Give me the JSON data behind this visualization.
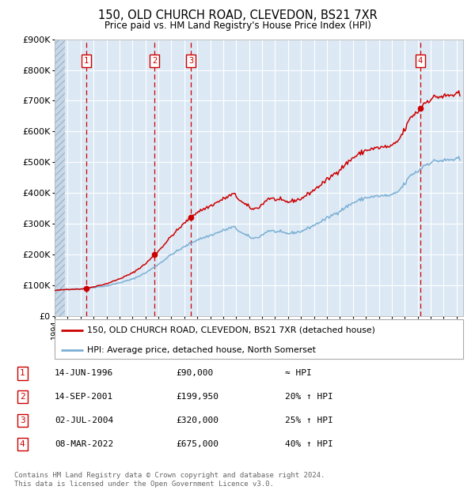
{
  "title": "150, OLD CHURCH ROAD, CLEVEDON, BS21 7XR",
  "subtitle": "Price paid vs. HM Land Registry's House Price Index (HPI)",
  "ylim": [
    0,
    900000
  ],
  "xlim_start": 1994.0,
  "xlim_end": 2025.5,
  "yticks": [
    0,
    100000,
    200000,
    300000,
    400000,
    500000,
    600000,
    700000,
    800000,
    900000
  ],
  "sales": [
    {
      "num": 1,
      "date": "14-JUN-1996",
      "price": 90000,
      "year": 1996.45,
      "hpi_rel": "≈ HPI"
    },
    {
      "num": 2,
      "date": "14-SEP-2001",
      "price": 199950,
      "year": 2001.71,
      "hpi_rel": "20% ↑ HPI"
    },
    {
      "num": 3,
      "date": "02-JUL-2004",
      "price": 320000,
      "year": 2004.5,
      "hpi_rel": "25% ↑ HPI"
    },
    {
      "num": 4,
      "date": "08-MAR-2022",
      "price": 675000,
      "year": 2022.18,
      "hpi_rel": "40% ↑ HPI"
    }
  ],
  "line_color_price": "#cc0000",
  "line_color_hpi": "#7bafd4",
  "dot_color": "#cc0000",
  "dashed_line_color": "#cc0000",
  "bg_color": "#dce9f5",
  "grid_color": "#ffffff",
  "legend_label_price": "150, OLD CHURCH ROAD, CLEVEDON, BS21 7XR (detached house)",
  "legend_label_hpi": "HPI: Average price, detached house, North Somerset",
  "footnote": "Contains HM Land Registry data © Crown copyright and database right 2024.\nThis data is licensed under the Open Government Licence v3.0.",
  "sale_box_color": "#cc0000",
  "footnote_color": "#666666"
}
